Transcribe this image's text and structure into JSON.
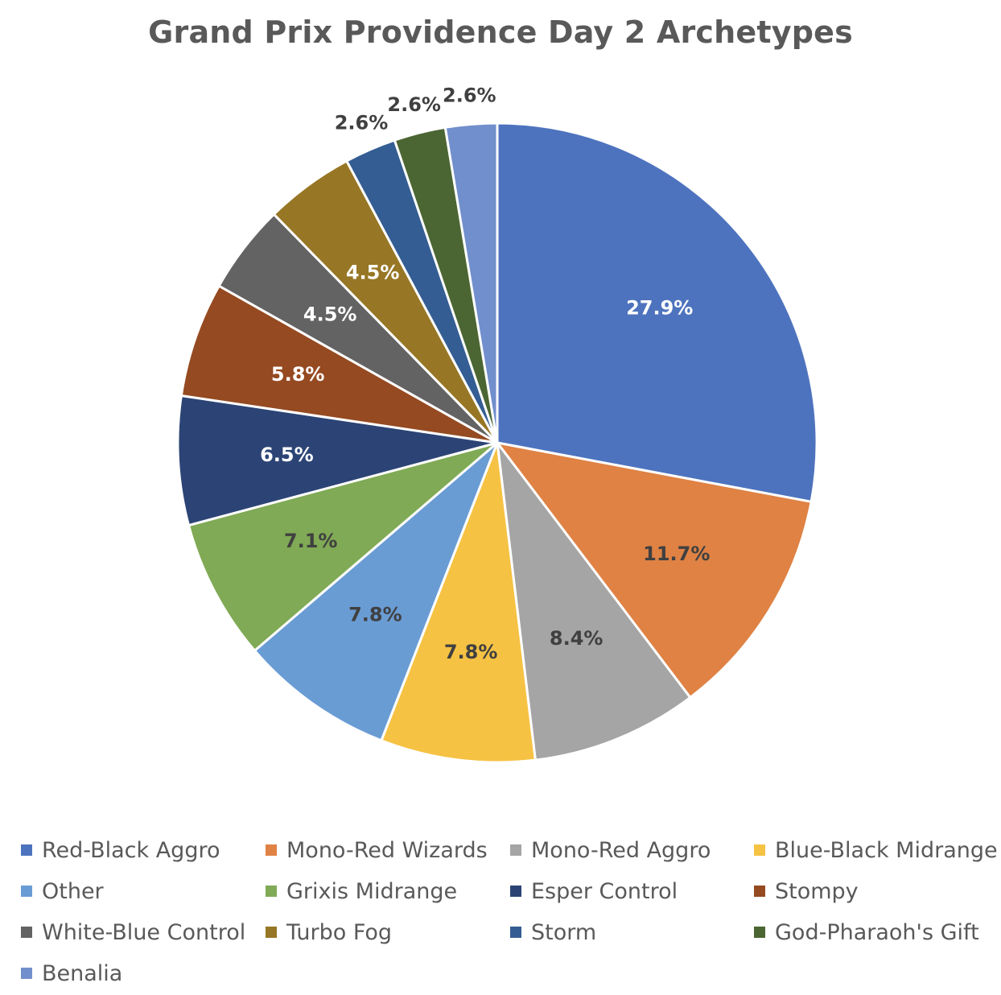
{
  "chart_data": {
    "type": "pie",
    "title": "Grand Prix Providence Day 2 Archetypes",
    "slices": [
      {
        "name": "Red-Black Aggro",
        "value": 27.9,
        "label": "27.9%",
        "color": "#4E73BE",
        "label_color": "#FFFFFF"
      },
      {
        "name": "Mono-Red Wizards",
        "value": 11.7,
        "label": "11.7%",
        "color": "#DF8244",
        "label_color": "#404040"
      },
      {
        "name": "Mono-Red Aggro",
        "value": 8.4,
        "label": "8.4%",
        "color": "#A5A5A5",
        "label_color": "#404040"
      },
      {
        "name": "Blue-Black Midrange",
        "value": 7.8,
        "label": "7.8%",
        "color": "#F6C243",
        "label_color": "#404040"
      },
      {
        "name": "Other",
        "value": 7.8,
        "label": "7.8%",
        "color": "#6A9CD4",
        "label_color": "#404040"
      },
      {
        "name": "Grixis Midrange",
        "value": 7.1,
        "label": "7.1%",
        "color": "#80AA55",
        "label_color": "#404040"
      },
      {
        "name": "Esper Control",
        "value": 6.5,
        "label": "6.5%",
        "color": "#2C4475",
        "label_color": "#FFFFFF"
      },
      {
        "name": "Stompy",
        "value": 5.8,
        "label": "5.8%",
        "color": "#954A21",
        "label_color": "#FFFFFF"
      },
      {
        "name": "White-Blue Control",
        "value": 4.5,
        "label": "4.5%",
        "color": "#636363",
        "label_color": "#FFFFFF"
      },
      {
        "name": "Turbo Fog",
        "value": 4.5,
        "label": "4.5%",
        "color": "#977625",
        "label_color": "#FFFFFF"
      },
      {
        "name": "Storm",
        "value": 2.6,
        "label": "2.6%",
        "color": "#345D93",
        "label_color": "#404040"
      },
      {
        "name": "God-Pharaoh's Gift",
        "value": 2.6,
        "label": "2.6%",
        "color": "#4B6632",
        "label_color": "#404040"
      },
      {
        "name": "Benalia",
        "value": 2.6,
        "label": "2.6%",
        "color": "#718FCC",
        "label_color": "#404040"
      }
    ],
    "legend_position": "bottom"
  }
}
